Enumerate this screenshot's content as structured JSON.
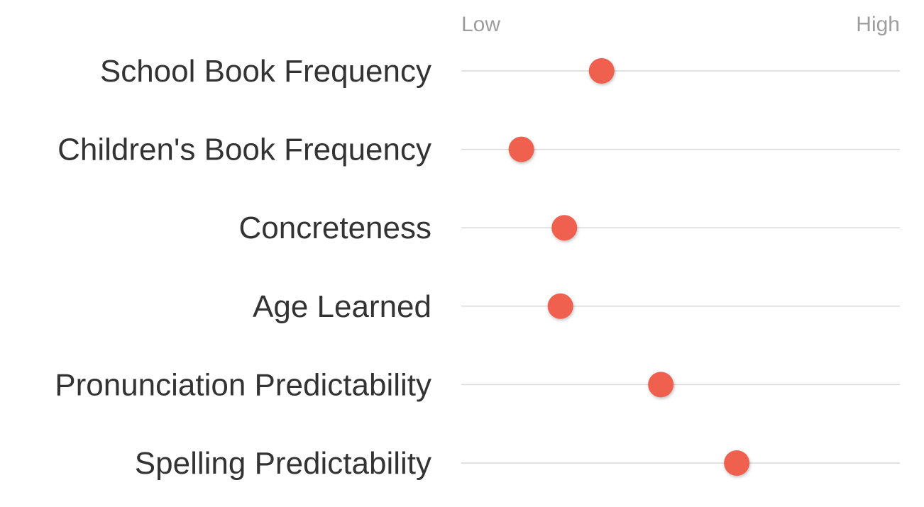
{
  "chart_data": {
    "type": "scatter",
    "title": "",
    "scale_labels": {
      "low": "Low",
      "high": "High"
    },
    "xlim": [
      0,
      1
    ],
    "grid": false,
    "dot_color": "#f0604f",
    "line_color": "#d9d9d9",
    "rows": [
      {
        "label": "School Book Frequency",
        "value": 0.32
      },
      {
        "label": "Children's Book Frequency",
        "value": 0.137
      },
      {
        "label": "Concreteness",
        "value": 0.235
      },
      {
        "label": "Age Learned",
        "value": 0.226
      },
      {
        "label": "Pronunciation Predictability",
        "value": 0.455
      },
      {
        "label": "Spelling Predictability",
        "value": 0.628
      }
    ]
  }
}
